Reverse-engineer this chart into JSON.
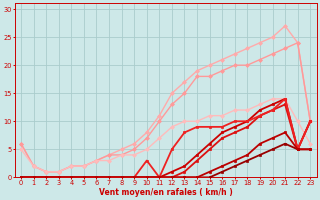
{
  "background_color": "#cde8e8",
  "grid_color": "#aacccc",
  "xlabel": "Vent moyen/en rafales ( km/h )",
  "xlabel_color": "#cc0000",
  "tick_color": "#cc0000",
  "xlim": [
    -0.5,
    23.5
  ],
  "ylim": [
    0,
    31
  ],
  "xticks": [
    0,
    1,
    2,
    3,
    4,
    5,
    6,
    7,
    8,
    9,
    10,
    11,
    12,
    13,
    14,
    15,
    16,
    17,
    18,
    19,
    20,
    21,
    22,
    23
  ],
  "yticks": [
    0,
    5,
    10,
    15,
    20,
    25,
    30
  ],
  "series": [
    {
      "x": [
        0,
        1,
        2,
        3,
        4,
        5,
        6,
        7,
        8,
        9,
        10,
        11,
        12,
        13,
        14,
        15,
        16,
        17,
        18,
        19,
        20,
        21,
        22,
        23
      ],
      "y": [
        6,
        2,
        1,
        1,
        2,
        2,
        3,
        4,
        5,
        6,
        8,
        11,
        15,
        17,
        19,
        20,
        21,
        22,
        23,
        24,
        25,
        27,
        24,
        10
      ],
      "color": "#ffaaaa",
      "lw": 1.0,
      "marker": "D",
      "ms": 2.0,
      "zorder": 2
    },
    {
      "x": [
        0,
        1,
        2,
        3,
        4,
        5,
        6,
        7,
        8,
        9,
        10,
        11,
        12,
        13,
        14,
        15,
        16,
        17,
        18,
        19,
        20,
        21,
        22,
        23
      ],
      "y": [
        6,
        2,
        1,
        1,
        2,
        2,
        3,
        4,
        4,
        5,
        7,
        10,
        13,
        15,
        18,
        18,
        19,
        20,
        20,
        21,
        22,
        23,
        24,
        10
      ],
      "color": "#ff9999",
      "lw": 1.0,
      "marker": "D",
      "ms": 2.0,
      "zorder": 2
    },
    {
      "x": [
        0,
        1,
        2,
        3,
        4,
        5,
        6,
        7,
        8,
        9,
        10,
        11,
        12,
        13,
        14,
        15,
        16,
        17,
        18,
        19,
        20,
        21,
        22,
        23
      ],
      "y": [
        5,
        2,
        1,
        1,
        2,
        2,
        3,
        3,
        4,
        4,
        5,
        7,
        9,
        10,
        10,
        11,
        11,
        12,
        12,
        13,
        14,
        14,
        10,
        6
      ],
      "color": "#ffbbbb",
      "lw": 1.0,
      "marker": "D",
      "ms": 2.0,
      "zorder": 2
    },
    {
      "x": [
        0,
        1,
        2,
        3,
        4,
        5,
        6,
        7,
        8,
        9,
        10,
        11,
        12,
        13,
        14,
        15,
        16,
        17,
        18,
        19,
        20,
        21,
        22,
        23
      ],
      "y": [
        0,
        0,
        0,
        0,
        0,
        0,
        0,
        0,
        0,
        0,
        0,
        0,
        1,
        2,
        4,
        6,
        8,
        9,
        10,
        12,
        13,
        14,
        5,
        10
      ],
      "color": "#cc0000",
      "lw": 1.3,
      "marker": "s",
      "ms": 2.0,
      "zorder": 3
    },
    {
      "x": [
        0,
        1,
        2,
        3,
        4,
        5,
        6,
        7,
        8,
        9,
        10,
        11,
        12,
        13,
        14,
        15,
        16,
        17,
        18,
        19,
        20,
        21,
        22,
        23
      ],
      "y": [
        0,
        0,
        0,
        0,
        0,
        0,
        0,
        0,
        0,
        0,
        0,
        0,
        0,
        1,
        3,
        5,
        7,
        8,
        9,
        11,
        12,
        13,
        5,
        10
      ],
      "color": "#dd1111",
      "lw": 1.3,
      "marker": "s",
      "ms": 2.0,
      "zorder": 3
    },
    {
      "x": [
        0,
        1,
        2,
        3,
        4,
        5,
        6,
        7,
        8,
        9,
        10,
        11,
        12,
        13,
        14,
        15,
        16,
        17,
        18,
        19,
        20,
        21,
        22,
        23
      ],
      "y": [
        0,
        0,
        0,
        0,
        0,
        0,
        0,
        0,
        0,
        0,
        3,
        0,
        5,
        8,
        9,
        9,
        9,
        10,
        10,
        11,
        12,
        14,
        5,
        10
      ],
      "color": "#ee2222",
      "lw": 1.3,
      "marker": "s",
      "ms": 2.0,
      "zorder": 3
    },
    {
      "x": [
        0,
        1,
        2,
        3,
        4,
        5,
        6,
        7,
        8,
        9,
        10,
        11,
        12,
        13,
        14,
        15,
        16,
        17,
        18,
        19,
        20,
        21,
        22,
        23
      ],
      "y": [
        0,
        0,
        0,
        0,
        0,
        0,
        0,
        0,
        0,
        0,
        0,
        0,
        0,
        0,
        0,
        0,
        1,
        2,
        3,
        4,
        5,
        6,
        5,
        5
      ],
      "color": "#990000",
      "lw": 1.3,
      "marker": "s",
      "ms": 2.0,
      "zorder": 3
    },
    {
      "x": [
        0,
        1,
        2,
        3,
        4,
        5,
        6,
        7,
        8,
        9,
        10,
        11,
        12,
        13,
        14,
        15,
        16,
        17,
        18,
        19,
        20,
        21,
        22,
        23
      ],
      "y": [
        0,
        0,
        0,
        0,
        0,
        0,
        0,
        0,
        0,
        0,
        0,
        0,
        0,
        0,
        0,
        1,
        2,
        3,
        4,
        6,
        7,
        8,
        5,
        5
      ],
      "color": "#bb0000",
      "lw": 1.3,
      "marker": "s",
      "ms": 2.0,
      "zorder": 3
    }
  ]
}
